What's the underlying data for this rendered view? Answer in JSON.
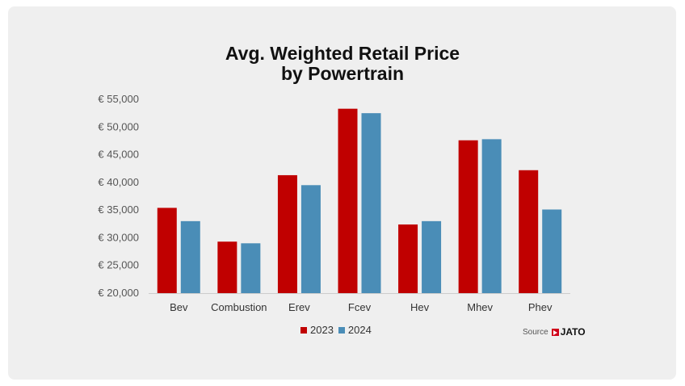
{
  "chart_data": {
    "type": "bar",
    "title_lines": [
      "Avg. Weighted Retail Price",
      "by Powertrain"
    ],
    "categories": [
      "Bev",
      "Combustion",
      "Erev",
      "Fcev",
      "Hev",
      "Mhev",
      "Phev"
    ],
    "series": [
      {
        "name": "2023",
        "color": "#c00000",
        "values": [
          35400,
          29300,
          41300,
          53300,
          32400,
          47600,
          42200
        ]
      },
      {
        "name": "2024",
        "color": "#4a8db7",
        "values": [
          33000,
          29000,
          39500,
          52500,
          33000,
          47800,
          35100
        ]
      }
    ],
    "ylim": [
      20000,
      55000
    ],
    "yticks": [
      {
        "value": 55000,
        "label": "€ 55,000"
      },
      {
        "value": 50000,
        "label": "€ 50,000"
      },
      {
        "value": 45000,
        "label": "€ 45,000"
      },
      {
        "value": 40000,
        "label": "€ 40,000"
      },
      {
        "value": 35000,
        "label": "€ 35,000"
      },
      {
        "value": 30000,
        "label": "€ 30,000"
      },
      {
        "value": 25000,
        "label": "€ 25,000"
      },
      {
        "value": 20000,
        "label": "€ 20,000"
      }
    ],
    "grid": false,
    "legend_position": "bottom-center"
  },
  "source": {
    "label": "Source",
    "brand": "JATO"
  }
}
